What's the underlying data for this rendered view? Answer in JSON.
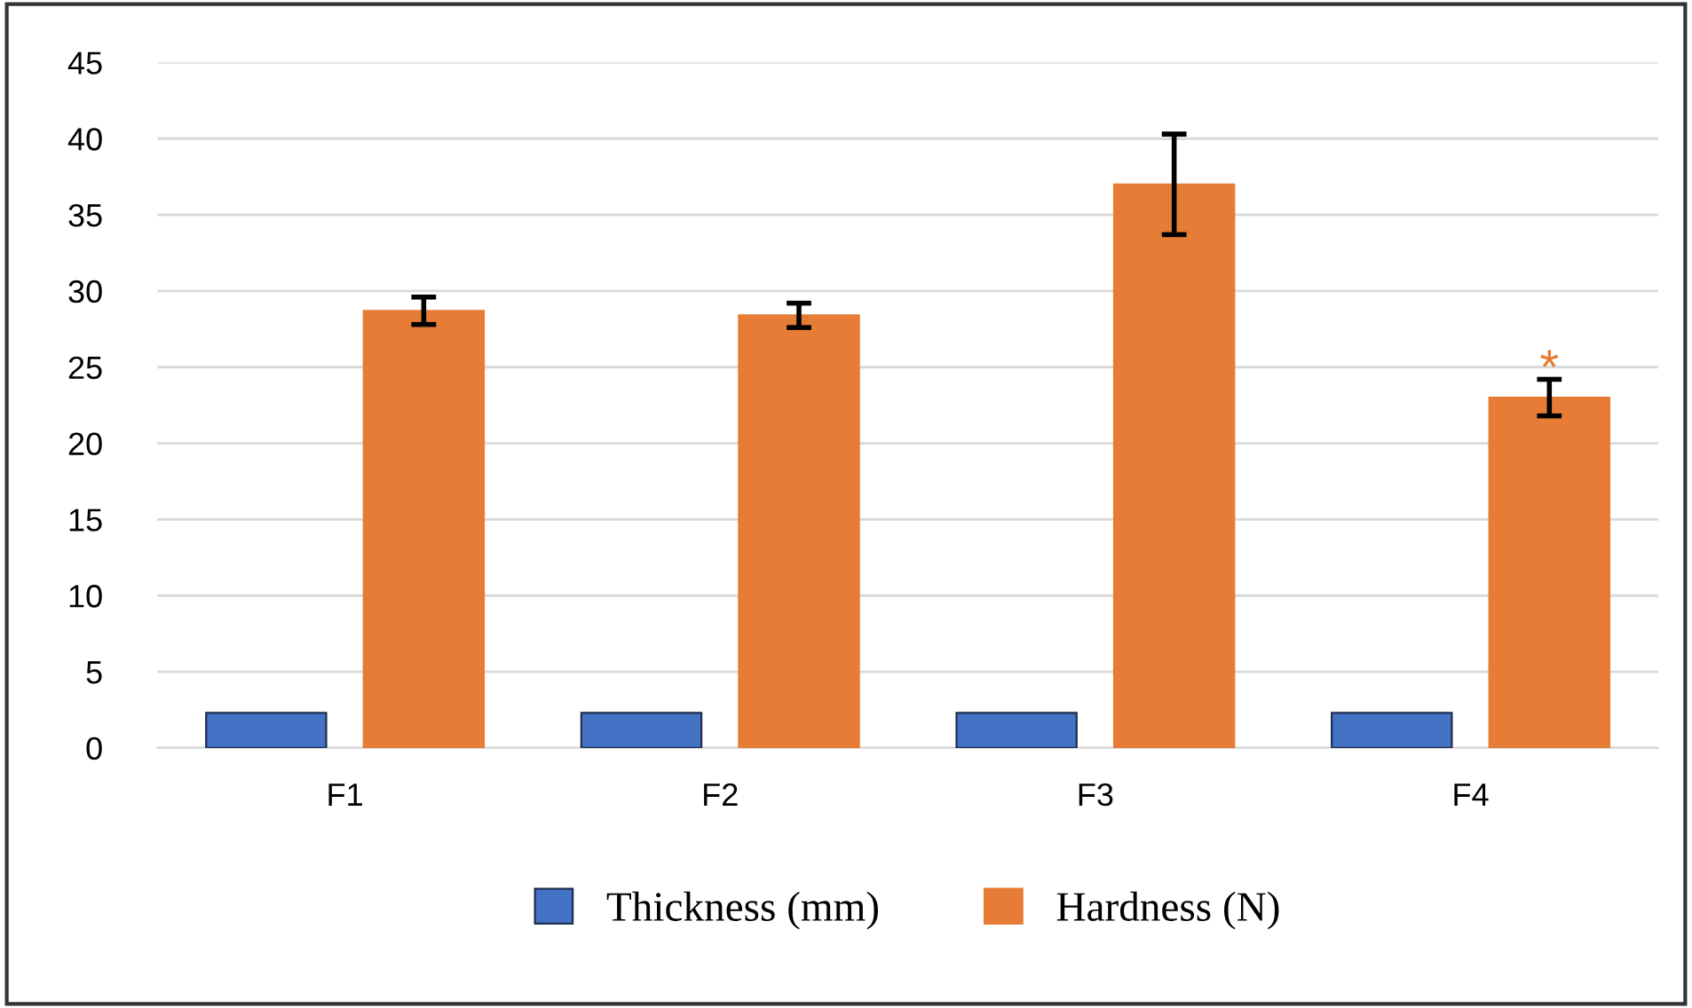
{
  "chart_data": {
    "type": "bar",
    "categories": [
      "F1",
      "F2",
      "F3",
      "F4"
    ],
    "series": [
      {
        "name": "Thickness (mm)",
        "color": "#4472c4",
        "values": [
          2.3,
          2.3,
          2.3,
          2.3
        ]
      },
      {
        "name": "Hardness (N)",
        "color": "#e67c35",
        "values": [
          28.7,
          28.4,
          37,
          23
        ],
        "errors": [
          0.9,
          0.8,
          3.3,
          1.2
        ]
      }
    ],
    "ylim": [
      0,
      45
    ],
    "yticks": [
      0,
      5,
      10,
      15,
      20,
      25,
      30,
      35,
      40,
      45
    ],
    "grid": "y",
    "legend": "bottom",
    "annotations": [
      "*"
    ]
  }
}
